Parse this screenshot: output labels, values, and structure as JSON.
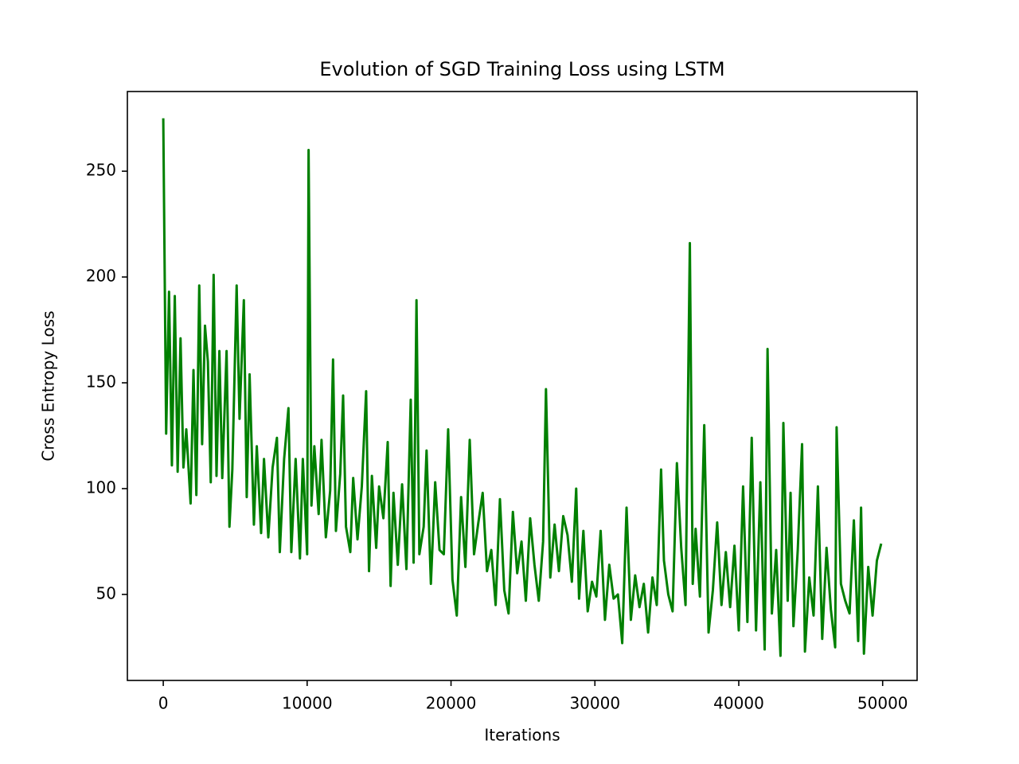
{
  "chart_data": {
    "type": "line",
    "title": "Evolution of SGD Training Loss using LSTM",
    "xlabel": "Iterations",
    "ylabel": "Cross Entropy Loss",
    "color": "#008000",
    "xlim": [
      -2495,
      52395
    ],
    "ylim": [
      9.35,
      287.65
    ],
    "xticks": [
      0,
      10000,
      20000,
      30000,
      40000,
      50000
    ],
    "yticks": [
      50,
      100,
      150,
      200,
      250
    ],
    "x": [
      0,
      200,
      400,
      600,
      800,
      1000,
      1200,
      1400,
      1600,
      1900,
      2100,
      2300,
      2500,
      2700,
      2900,
      3100,
      3300,
      3500,
      3700,
      3900,
      4100,
      4400,
      4600,
      4800,
      5100,
      5300,
      5600,
      5800,
      6000,
      6300,
      6500,
      6800,
      7000,
      7300,
      7600,
      7900,
      8100,
      8400,
      8700,
      8900,
      9200,
      9500,
      9700,
      10000,
      10100,
      10300,
      10500,
      10800,
      11000,
      11300,
      11600,
      11800,
      12000,
      12300,
      12500,
      12700,
      13000,
      13200,
      13500,
      13800,
      14100,
      14300,
      14500,
      14800,
      15000,
      15300,
      15600,
      15800,
      16000,
      16300,
      16600,
      16900,
      17200,
      17400,
      17600,
      17800,
      18100,
      18300,
      18600,
      18900,
      19200,
      19500,
      19800,
      20100,
      20400,
      20700,
      21000,
      21300,
      21600,
      21900,
      22200,
      22500,
      22800,
      23100,
      23400,
      23700,
      24000,
      24300,
      24600,
      24900,
      25200,
      25500,
      25800,
      26100,
      26400,
      26600,
      26900,
      27200,
      27500,
      27800,
      28100,
      28400,
      28700,
      28900,
      29200,
      29500,
      29800,
      30100,
      30400,
      30700,
      31000,
      31300,
      31600,
      31900,
      32200,
      32500,
      32800,
      33100,
      33400,
      33700,
      34000,
      34300,
      34600,
      34800,
      35100,
      35400,
      35700,
      36000,
      36300,
      36600,
      36800,
      37000,
      37300,
      37600,
      37900,
      38200,
      38500,
      38800,
      39100,
      39400,
      39700,
      40000,
      40300,
      40600,
      40900,
      41200,
      41500,
      41800,
      42000,
      42300,
      42600,
      42900,
      43100,
      43400,
      43600,
      43800,
      44100,
      44400,
      44600,
      44900,
      45200,
      45500,
      45800,
      46100,
      46400,
      46700,
      46800,
      47100,
      47400,
      47700,
      48000,
      48300,
      48500,
      48700,
      49000,
      49300,
      49600,
      49900
    ],
    "values": [
      275,
      126,
      193,
      111,
      191,
      108,
      171,
      110,
      128,
      93,
      156,
      97,
      196,
      121,
      177,
      160,
      103,
      201,
      106,
      165,
      105,
      165,
      82,
      109,
      196,
      133,
      189,
      96,
      154,
      83,
      120,
      79,
      114,
      77,
      110,
      124,
      70,
      114,
      138,
      70,
      114,
      67,
      114,
      69,
      260,
      92,
      120,
      88,
      123,
      77,
      99,
      161,
      80,
      107,
      144,
      82,
      70,
      105,
      76,
      101,
      146,
      61,
      106,
      72,
      101,
      86,
      122,
      54,
      98,
      64,
      102,
      62,
      142,
      65,
      189,
      69,
      82,
      118,
      55,
      103,
      71,
      69,
      128,
      57,
      40,
      96,
      63,
      123,
      69,
      84,
      98,
      61,
      71,
      45,
      95,
      52,
      41,
      89,
      60,
      75,
      47,
      86,
      64,
      47,
      75,
      147,
      58,
      83,
      61,
      87,
      78,
      56,
      100,
      48,
      80,
      42,
      56,
      49,
      80,
      38,
      64,
      48,
      50,
      27,
      91,
      38,
      59,
      44,
      55,
      32,
      58,
      45,
      109,
      66,
      50,
      42,
      112,
      72,
      45,
      216,
      55,
      81,
      49,
      130,
      32,
      52,
      84,
      45,
      70,
      44,
      73,
      33,
      101,
      37,
      124,
      33,
      103,
      24,
      166,
      41,
      71,
      21,
      131,
      47,
      98,
      35,
      71,
      121,
      23,
      58,
      40,
      101,
      29,
      72,
      43,
      25,
      129,
      55,
      47,
      41,
      85,
      28,
      91,
      22,
      63,
      40,
      66,
      74
    ]
  }
}
